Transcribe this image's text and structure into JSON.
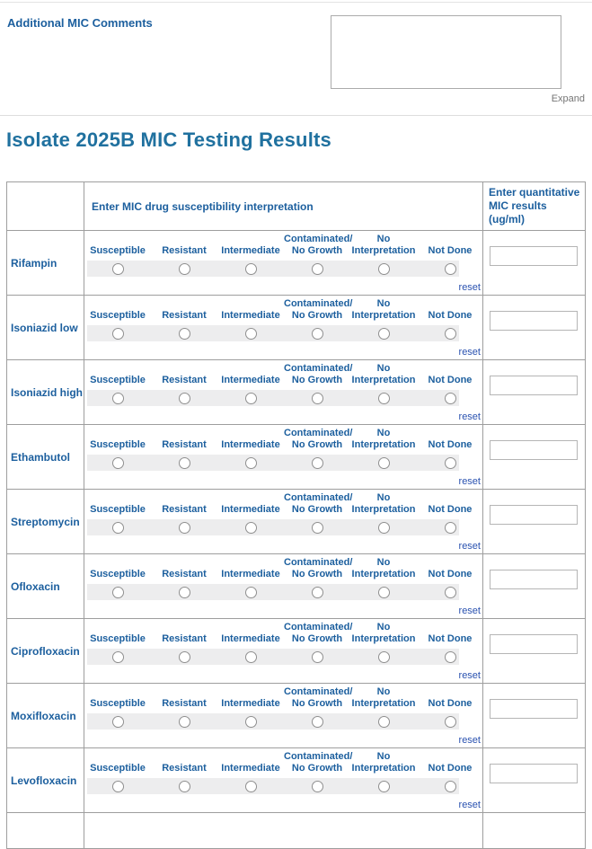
{
  "comments": {
    "label": "Additional MIC Comments",
    "value": "",
    "expand_label": "Expand"
  },
  "title": "Isolate 2025B MIC Testing Results",
  "table": {
    "interpretation_header": "Enter MIC drug susceptibility interpretation",
    "quantitative_header": "Enter quantitative MIC results (ug/ml)",
    "options": [
      "Susceptible",
      "Resistant",
      "Intermediate",
      "Contaminated/\nNo Growth",
      "No\nInterpretation",
      "Not Done"
    ],
    "reset_label": "reset",
    "drugs": [
      "Rifampin",
      "Isoniazid low",
      "Isoniazid high",
      "Ethambutol",
      "Streptomycin",
      "Ofloxacin",
      "Ciprofloxacin",
      "Moxifloxacin",
      "Levofloxacin"
    ],
    "mic_values": [
      "",
      "",
      "",
      "",
      "",
      "",
      "",
      "",
      ""
    ],
    "selected": [
      null,
      null,
      null,
      null,
      null,
      null,
      null,
      null,
      null
    ]
  },
  "colors": {
    "title_blue": "#20719f",
    "label_blue": "#1c5f9e",
    "reset_blue": "#2a52b0",
    "expand_gray": "#757575",
    "strip_gray": "#ededee",
    "table_border": "#9e9e9e"
  }
}
